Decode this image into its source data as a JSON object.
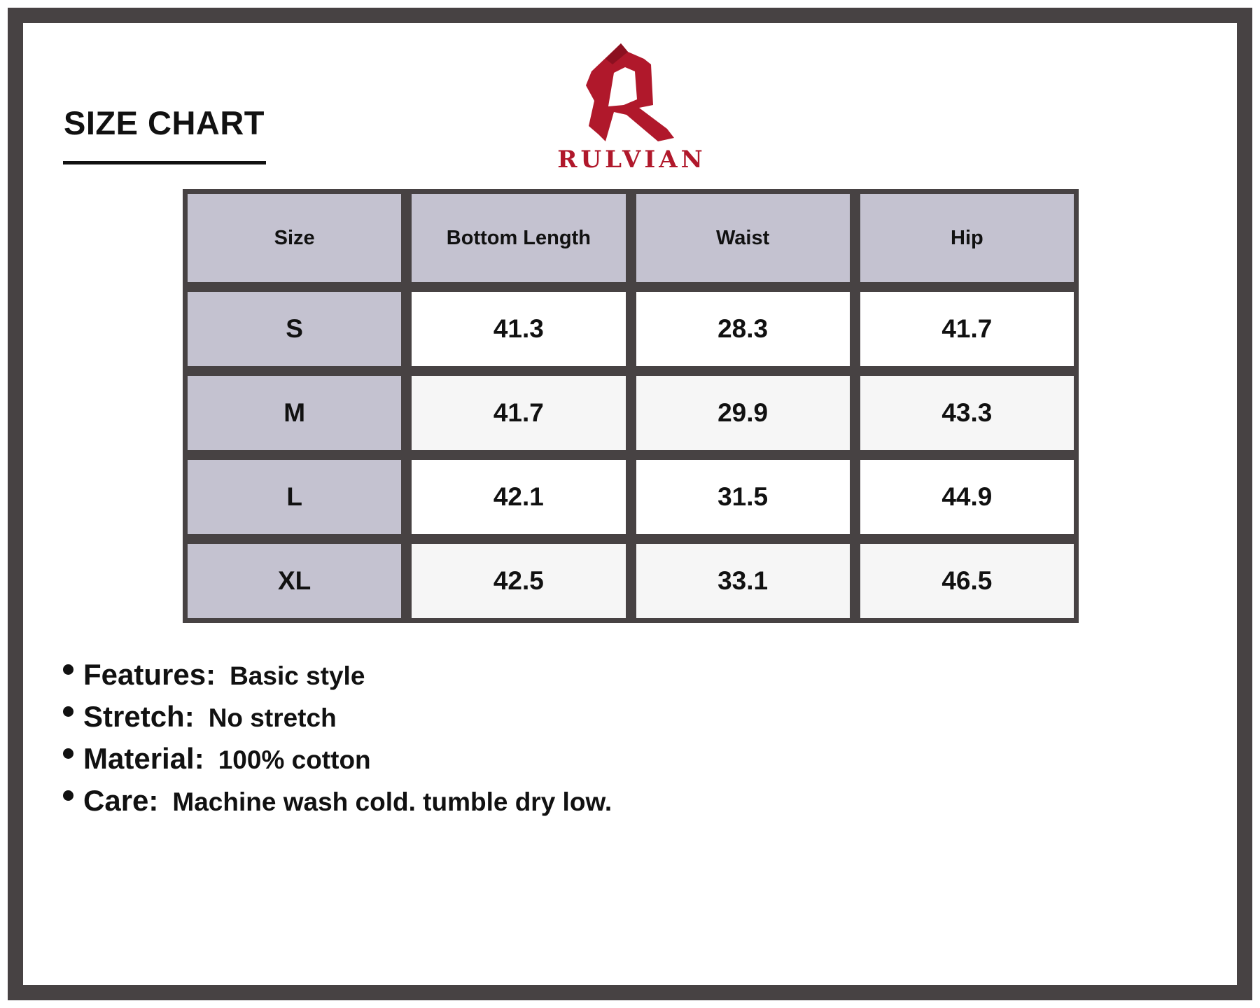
{
  "title": "SIZE CHART",
  "brand": {
    "name": "RULVIAN",
    "color": "#b0182b"
  },
  "colors": {
    "frame": "#474243",
    "header_bg": "#c4c2d0"
  },
  "table": {
    "headers": [
      "Size",
      "Bottom Length",
      "Waist",
      "Hip"
    ],
    "rows": [
      [
        "S",
        "41.3",
        "28.3",
        "41.7"
      ],
      [
        "M",
        "41.7",
        "29.9",
        "43.3"
      ],
      [
        "L",
        "42.1",
        "31.5",
        "44.9"
      ],
      [
        "XL",
        "42.5",
        "33.1",
        "46.5"
      ]
    ]
  },
  "specs": [
    {
      "label": "Features:",
      "value": "Basic style"
    },
    {
      "label": "Stretch:",
      "value": "No stretch"
    },
    {
      "label": "Material:",
      "value": "100% cotton"
    },
    {
      "label": "Care:",
      "value": "Machine wash cold. tumble dry low."
    }
  ]
}
